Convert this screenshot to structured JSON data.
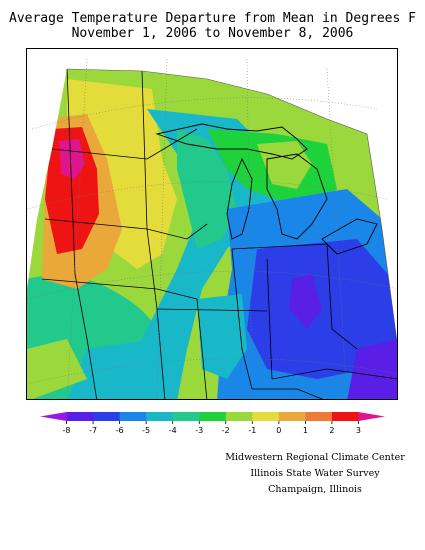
{
  "title_line1": "Average Temperature Departure from Mean in Degrees F",
  "title_line2": "November 1, 2006 to November 8, 2006",
  "legend": {
    "ticks": [
      "-8",
      "-7",
      "-6",
      "-5",
      "-4",
      "-3",
      "-2",
      "-1",
      "0",
      "1",
      "2",
      "3"
    ],
    "colors": [
      "#9b18e6",
      "#5a1fe6",
      "#2b3ee8",
      "#1a86e8",
      "#18b8c8",
      "#22c88c",
      "#1ed23c",
      "#9ad83c",
      "#e4dc3a",
      "#eaa83a",
      "#ee7a38",
      "#ee1414",
      "#e0148c"
    ]
  },
  "credits": [
    "Midwestern Regional Climate Center",
    "Illinois State Water Survey",
    "Champaign, Illinois"
  ]
}
